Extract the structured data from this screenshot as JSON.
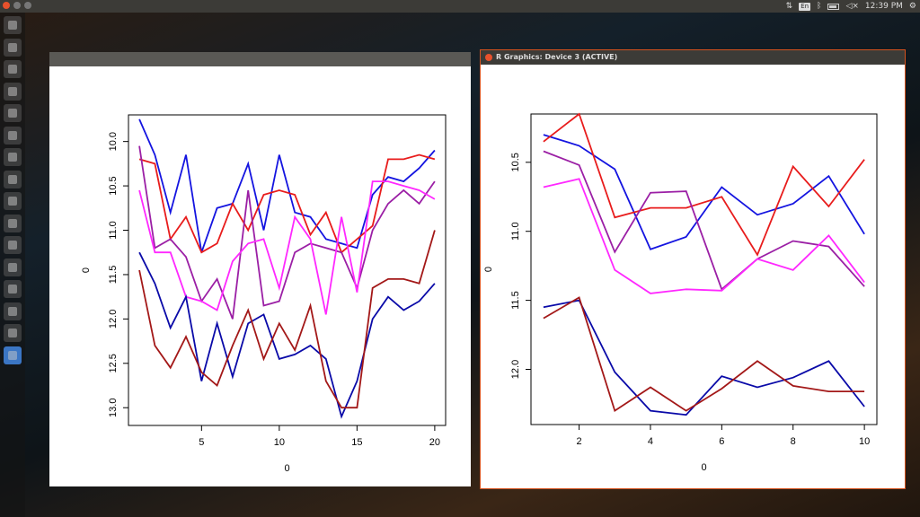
{
  "topbar": {
    "language": "En",
    "time": "12:39 PM",
    "icons": [
      "network-arrows-icon",
      "keyboard-language-icon",
      "bluetooth-icon",
      "battery-icon",
      "volume-muted-icon",
      "gear-icon"
    ]
  },
  "launcher": {
    "items": [
      "dash-home-icon",
      "browser-icon",
      "files-icon",
      "software-center-icon",
      "terminal-icon",
      "settings-icon",
      "tools-icon",
      "document-icon",
      "network-icon",
      "writer-icon",
      "text-editor-icon",
      "document-icon",
      "archive-icon",
      "document-icon",
      "app-icon",
      "r-app-icon"
    ]
  },
  "windows": [
    {
      "title": "",
      "active": false
    },
    {
      "title": "R Graphics: Device 3 (ACTIVE)",
      "active": true
    }
  ],
  "chart_data": [
    {
      "type": "line",
      "title": "",
      "xlabel": "0",
      "ylabel": "0",
      "ylim": [
        13.2,
        9.7
      ],
      "xlim": [
        0.3,
        20.7
      ],
      "x": [
        1,
        2,
        3,
        4,
        5,
        6,
        7,
        8,
        9,
        10,
        11,
        12,
        13,
        14,
        15,
        16,
        17,
        18,
        19,
        20
      ],
      "xticks": [
        5,
        10,
        15,
        20
      ],
      "yticks": [
        "10.0",
        "10.5",
        "11.0",
        "11.5",
        "12.0",
        "12.5",
        "13.0"
      ],
      "series": [
        {
          "color": "#1414e0",
          "values": [
            9.75,
            10.15,
            10.8,
            10.15,
            11.25,
            10.75,
            10.7,
            10.25,
            11.0,
            10.15,
            10.8,
            10.85,
            11.1,
            11.15,
            11.2,
            10.6,
            10.4,
            10.45,
            10.3,
            10.1
          ]
        },
        {
          "color": "#e81c1c",
          "values": [
            10.2,
            10.25,
            11.1,
            10.85,
            11.25,
            11.15,
            10.7,
            11.0,
            10.6,
            10.55,
            10.6,
            11.05,
            10.8,
            11.25,
            11.1,
            10.95,
            10.2,
            10.2,
            10.15,
            10.2
          ]
        },
        {
          "color": "#9b1fa5",
          "values": [
            10.05,
            11.2,
            11.1,
            11.3,
            11.8,
            11.55,
            12.0,
            10.55,
            11.85,
            11.8,
            11.25,
            11.15,
            11.2,
            11.25,
            11.65,
            11.0,
            10.7,
            10.55,
            10.7,
            10.45
          ]
        },
        {
          "color": "#ff28ff",
          "values": [
            10.55,
            11.25,
            11.25,
            11.75,
            11.8,
            11.9,
            11.35,
            11.15,
            11.1,
            11.65,
            10.85,
            11.1,
            11.95,
            10.85,
            11.7,
            10.45,
            10.45,
            10.5,
            10.55,
            10.65
          ]
        },
        {
          "color": "#0a0aa8",
          "values": [
            11.25,
            11.6,
            12.1,
            11.75,
            12.7,
            12.05,
            12.65,
            12.05,
            11.95,
            12.45,
            12.4,
            12.3,
            12.45,
            13.1,
            12.7,
            12.0,
            11.75,
            11.9,
            11.8,
            11.6
          ]
        },
        {
          "color": "#a31818",
          "values": [
            11.45,
            12.3,
            12.55,
            12.2,
            12.6,
            12.75,
            12.3,
            11.9,
            12.45,
            12.05,
            12.35,
            11.85,
            12.7,
            13.0,
            13.0,
            11.65,
            11.55,
            11.55,
            11.6,
            11.0
          ]
        }
      ]
    },
    {
      "type": "line",
      "title": "",
      "xlabel": "0",
      "ylabel": "0",
      "ylim": [
        12.4,
        10.15
      ],
      "xlim": [
        0.65,
        10.35
      ],
      "x": [
        1,
        2,
        3,
        4,
        5,
        6,
        7,
        8,
        9,
        10
      ],
      "xticks": [
        2,
        4,
        6,
        8,
        10
      ],
      "yticks": [
        "10.5",
        "11.0",
        "11.5",
        "12.0"
      ],
      "series": [
        {
          "color": "#1414e0",
          "values": [
            10.3,
            10.38,
            10.55,
            11.13,
            11.04,
            10.68,
            10.88,
            10.8,
            10.6,
            11.02
          ]
        },
        {
          "color": "#e81c1c",
          "values": [
            10.35,
            10.15,
            10.9,
            10.83,
            10.83,
            10.75,
            11.17,
            10.53,
            10.82,
            10.48
          ]
        },
        {
          "color": "#9b1fa5",
          "values": [
            10.42,
            10.52,
            11.15,
            10.72,
            10.71,
            11.42,
            11.2,
            11.07,
            11.11,
            11.4
          ]
        },
        {
          "color": "#ff28ff",
          "values": [
            10.68,
            10.62,
            11.28,
            11.45,
            11.42,
            11.43,
            11.2,
            11.28,
            11.03,
            11.37
          ]
        },
        {
          "color": "#0a0aa8",
          "values": [
            11.55,
            11.5,
            12.02,
            12.3,
            12.33,
            12.05,
            12.13,
            12.06,
            11.94,
            12.27
          ]
        },
        {
          "color": "#a31818",
          "values": [
            11.63,
            11.48,
            12.3,
            12.13,
            12.3,
            12.14,
            11.94,
            12.12,
            12.16,
            12.16
          ]
        }
      ]
    }
  ]
}
